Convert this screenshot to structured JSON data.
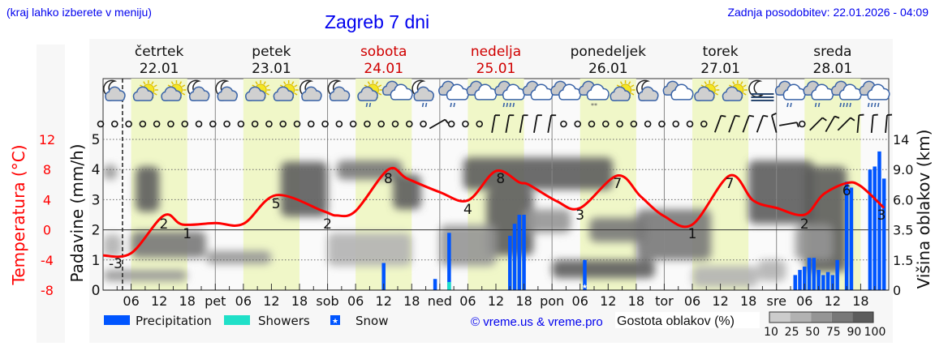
{
  "header": {
    "location_hint": "(kraj lahko izberete v meniju)",
    "title": "Zagreb 7 dni",
    "updated": "Zadnja posodobitev: 22.01.2026 - 04:09"
  },
  "legend": {
    "precipitation": "Precipitation",
    "showers": "Showers",
    "snow": "Snow",
    "copyright": "© vreme.us & vreme.pro",
    "cloud_density_title": "Gostota oblakov (%)",
    "cloud_density_ticks": [
      "10",
      "25",
      "50",
      "75",
      "90",
      "100"
    ]
  },
  "colors": {
    "header_text": "#0000ee",
    "temperature": "#ff0000",
    "weekend": "#d00000",
    "precipitation": "#0055ff",
    "showers": "#20e0c8",
    "daylight": "#f0f7c8",
    "cloud_density": [
      "#cccccc",
      "#b2b2b2",
      "#959595",
      "#787878",
      "#5c5c5c"
    ]
  },
  "chart_data": {
    "type": "meteogram",
    "x_range": [
      "22.01 00:00",
      "29.01 00:00"
    ],
    "now": "22.01 04:09",
    "days": [
      {
        "name": "četrtek",
        "date": "22.01",
        "weekend": false
      },
      {
        "name": "petek",
        "date": "23.01",
        "weekend": false
      },
      {
        "name": "sobota",
        "date": "24.01",
        "weekend": true
      },
      {
        "name": "nedelja",
        "date": "25.01",
        "weekend": true
      },
      {
        "name": "ponedeljek",
        "date": "26.01",
        "weekend": false
      },
      {
        "name": "torek",
        "date": "27.01",
        "weekend": false
      },
      {
        "name": "sreda",
        "date": "28.01",
        "weekend": false
      }
    ],
    "x_tick_labels": [
      "",
      "06",
      "12",
      "18",
      "pet",
      "06",
      "12",
      "18",
      "sob",
      "06",
      "12",
      "18",
      "ned",
      "06",
      "12",
      "18",
      "pon",
      "06",
      "12",
      "18",
      "tor",
      "06",
      "12",
      "18",
      "sre",
      "06",
      "12",
      "18"
    ],
    "left_axis_temperature": {
      "label": "Temperatura (°C)",
      "ticks": [
        12,
        8,
        4,
        0,
        -4,
        -8
      ],
      "range": [
        -8,
        12
      ]
    },
    "left_axis_precipitation": {
      "label": "Padavine (mm/h)",
      "ticks": [
        0,
        1,
        2,
        3,
        4,
        5
      ],
      "range": [
        0,
        5
      ]
    },
    "right_axis_cloud_height": {
      "label": "Višina oblakov (km)",
      "ticks": [
        "0",
        "1.5",
        "3.5",
        "6.0",
        "9.0",
        "14"
      ]
    },
    "temperature": [
      [
        "22.01 00:00",
        -3.4
      ],
      [
        "22.01 06:00",
        -3.1
      ],
      [
        "22.01 13:00",
        1.9
      ],
      [
        "22.01 17:00",
        0.7
      ],
      [
        "23.01 00:00",
        0.9
      ],
      [
        "23.01 06:00",
        0.8
      ],
      [
        "23.01 13:00",
        4.6
      ],
      [
        "23.01 23:00",
        2.5
      ],
      [
        "24.01 02:00",
        1.9
      ],
      [
        "24.01 06:00",
        2.5
      ],
      [
        "24.01 13:00",
        8.0
      ],
      [
        "24.01 17:00",
        6.8
      ],
      [
        "25.01 00:00",
        5.0
      ],
      [
        "25.01 06:00",
        3.9
      ],
      [
        "25.01 12:00",
        7.8
      ],
      [
        "25.01 17:00",
        6.3
      ],
      [
        "25.01 19:00",
        6.0
      ],
      [
        "26.01 01:00",
        3.8
      ],
      [
        "26.01 06:00",
        2.9
      ],
      [
        "26.01 14:00",
        7.2
      ],
      [
        "26.01 19:00",
        4.4
      ],
      [
        "27.01 00:00",
        1.8
      ],
      [
        "27.01 06:00",
        0.7
      ],
      [
        "27.01 14:00",
        7.2
      ],
      [
        "27.01 19:00",
        3.9
      ],
      [
        "28.01 00:00",
        2.9
      ],
      [
        "28.01 06:00",
        2.0
      ],
      [
        "28.01 10:00",
        4.7
      ],
      [
        "28.01 15:00",
        6.2
      ],
      [
        "28.01 18:00",
        5.8
      ],
      [
        "28.01 23:00",
        2.9
      ]
    ],
    "temperature_labels": [
      [
        "22.01 00:00",
        "-3"
      ],
      [
        "22.01 13:00",
        "2"
      ],
      [
        "22.01 18:00",
        "1"
      ],
      [
        "23.01 13:00",
        "5"
      ],
      [
        "24.01 00:00",
        "2"
      ],
      [
        "24.01 13:00",
        "8"
      ],
      [
        "25.01 06:00",
        "4"
      ],
      [
        "25.01 13:00",
        "8"
      ],
      [
        "26.01 06:00",
        "3"
      ],
      [
        "26.01 14:00",
        "7"
      ],
      [
        "27.01 06:00",
        "1"
      ],
      [
        "27.01 14:00",
        "7"
      ],
      [
        "28.01 06:00",
        "2"
      ],
      [
        "28.01 15:00",
        "6"
      ],
      [
        "28.01 24:00",
        "3"
      ]
    ],
    "precipitation": [
      [
        "24.01 12:00",
        0.9,
        "rain"
      ],
      [
        "24.01 23:00",
        0.37,
        "rain"
      ],
      [
        "25.01 02:00",
        1.9,
        "rain"
      ],
      [
        "25.01 15:00",
        1.8,
        "rain"
      ],
      [
        "25.01 16:00",
        2.2,
        "rain"
      ],
      [
        "25.01 17:00",
        2.5,
        "rain"
      ],
      [
        "25.01 18:00",
        2.5,
        "rain"
      ],
      [
        "26.01 07:00",
        1.0,
        "snow"
      ],
      [
        "28.01 04:00",
        0.5,
        "rain"
      ],
      [
        "28.01 05:00",
        0.67,
        "rain"
      ],
      [
        "28.01 06:00",
        0.78,
        "rain"
      ],
      [
        "28.01 07:00",
        1.07,
        "rain"
      ],
      [
        "28.01 08:00",
        1.07,
        "rain"
      ],
      [
        "28.01 09:00",
        0.67,
        "rain"
      ],
      [
        "28.01 10:00",
        0.5,
        "rain"
      ],
      [
        "28.01 11:00",
        0.6,
        "rain"
      ],
      [
        "28.01 12:00",
        0.5,
        "rain"
      ],
      [
        "28.01 13:00",
        1.0,
        "rain"
      ],
      [
        "28.01 15:00",
        3.6,
        "rain"
      ],
      [
        "28.01 16:00",
        3.4,
        "rain"
      ],
      [
        "28.01 20:00",
        4.0,
        "rain"
      ],
      [
        "28.01 21:00",
        4.1,
        "rain"
      ],
      [
        "28.01 22:00",
        4.6,
        "rain"
      ],
      [
        "28.01 23:00",
        3.7,
        "rain"
      ]
    ],
    "showers": [
      [
        "25.01 02:00",
        0.27
      ]
    ],
    "cloud_density": [
      {
        "from": "22.01 00:00",
        "to": "22.01 18:00",
        "km": [
          0.45,
          1.0
        ],
        "pct": 50
      },
      {
        "from": "22.01 00:00",
        "to": "22.01 04:00",
        "km": [
          1.7,
          3.2
        ],
        "pct": 25
      },
      {
        "from": "22.01 06:00",
        "to": "22.01 22:00",
        "km": [
          1.65,
          3.4
        ],
        "pct": 75
      },
      {
        "from": "22.01 22:00",
        "to": "23.01 12:00",
        "km": [
          1.3,
          2.1
        ],
        "pct": 50
      },
      {
        "from": "22.01 07:00",
        "to": "22.01 12:00",
        "km": [
          5.0,
          9.5
        ],
        "pct": 90
      },
      {
        "from": "22.01 00:00",
        "to": "22.01 03:00",
        "km": [
          8.0,
          9.8
        ],
        "pct": 50
      },
      {
        "from": "23.01 14:00",
        "to": "24.01 00:00",
        "km": [
          4.6,
          10.3
        ],
        "pct": 90
      },
      {
        "from": "24.01 02:00",
        "to": "24.01 16:00",
        "km": [
          8.0,
          10.5
        ],
        "pct": 75
      },
      {
        "from": "24.01 14:00",
        "to": "24.01 20:00",
        "km": [
          5.2,
          8.5
        ],
        "pct": 90
      },
      {
        "from": "24.01 00:00",
        "to": "24.01 18:00",
        "km": [
          1.2,
          3.3
        ],
        "pct": 25
      },
      {
        "from": "25.01 05:00",
        "to": "26.01 13:00",
        "km": [
          7.0,
          11.0
        ],
        "pct": 100
      },
      {
        "from": "25.01 10:00",
        "to": "25.01 20:00",
        "km": [
          1.8,
          7.0
        ],
        "pct": 90
      },
      {
        "from": "25.01 00:00",
        "to": "25.01 12:00",
        "km": [
          1.2,
          3.9
        ],
        "pct": 50
      },
      {
        "from": "25.01 18:00",
        "to": "26.01 04:00",
        "km": [
          3.3,
          5.2
        ],
        "pct": 50
      },
      {
        "from": "26.01 00:00",
        "to": "26.01 22:00",
        "km": [
          0.6,
          1.5
        ],
        "pct": 90
      },
      {
        "from": "26.01 08:00",
        "to": "26.01 20:00",
        "km": [
          2.7,
          4.5
        ],
        "pct": 75
      },
      {
        "from": "26.01 18:00",
        "to": "27.01 10:00",
        "km": [
          1.5,
          5.2
        ],
        "pct": 75
      },
      {
        "from": "27.01 06:00",
        "to": "27.01 20:00",
        "km": [
          0.15,
          1.2
        ],
        "pct": 25
      },
      {
        "from": "27.01 18:00",
        "to": "28.01 08:00",
        "km": [
          4.0,
          10.5
        ],
        "pct": 90
      },
      {
        "from": "28.01 06:00",
        "to": "28.01 15:00",
        "km": [
          0.9,
          9.5
        ],
        "pct": 100
      },
      {
        "from": "27.01 20:00",
        "to": "28.01 02:00",
        "km": [
          0.45,
          1.5
        ],
        "pct": 25
      },
      {
        "from": "28.01 04:00",
        "to": "28.01 12:00",
        "km": [
          1.5,
          3.9
        ],
        "pct": 50
      }
    ],
    "weather_icons": [
      "moon-cloud",
      "sun-cloud",
      "sun-cloud",
      "moon-cloud",
      "moon-cloud",
      "sun-cloud",
      "sun-cloud",
      "moon-cloud",
      "moon-cloud",
      "sun-cloud-rain-light",
      "cloud",
      "moon-cloud-rain-light",
      "cloud-rain-light",
      "cloud",
      "cloud-rain-heavy",
      "cloud",
      "cloud",
      "cloud-snow",
      "sun-cloud",
      "moon-cloud",
      "cloud",
      "sun-cloud",
      "sun-cloud",
      "moon-fog",
      "cloud-rain-light",
      "cloud-rain-light",
      "cloud-rain-heavy",
      "cloud-rain-heavy"
    ],
    "wind_direction_deg": [
      null,
      null,
      null,
      null,
      null,
      null,
      null,
      null,
      null,
      null,
      null,
      null,
      null,
      null,
      null,
      null,
      null,
      null,
      null,
      null,
      null,
      null,
      null,
      null,
      240,
      null,
      null,
      null,
      190,
      190,
      190,
      190,
      190,
      null,
      null,
      null,
      null,
      null,
      null,
      null,
      null,
      null,
      null,
      null,
      200,
      200,
      200,
      200,
      165,
      260,
      null,
      225,
      210,
      225,
      185,
      185,
      185
    ]
  }
}
